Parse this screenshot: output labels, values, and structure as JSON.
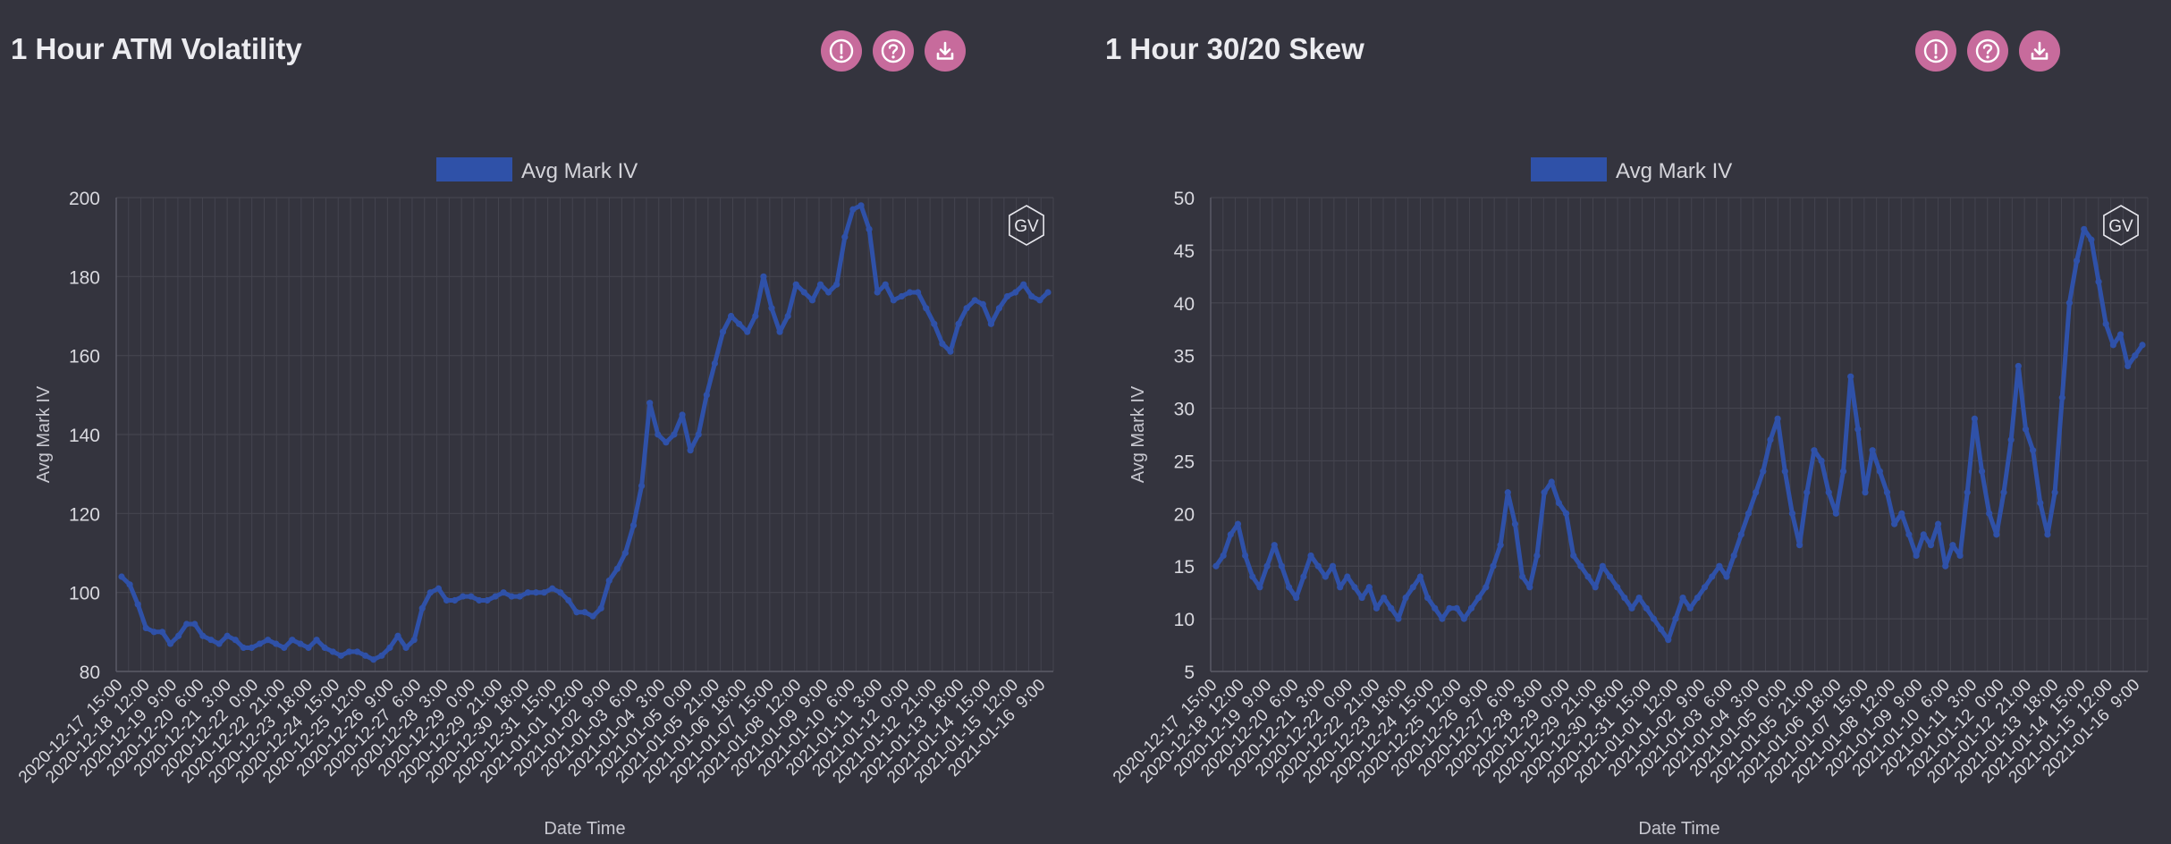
{
  "panels": [
    {
      "title": "1 Hour ATM Volatility",
      "buttons": [
        {
          "name": "info-icon"
        },
        {
          "name": "help-icon"
        },
        {
          "name": "download-icon"
        }
      ]
    },
    {
      "title": "1 Hour 30/20 Skew",
      "buttons": [
        {
          "name": "info-icon"
        },
        {
          "name": "help-icon"
        },
        {
          "name": "download-icon"
        }
      ]
    }
  ],
  "watermark": "GV",
  "colors": {
    "background": "#34343e",
    "series": "#2f51a8",
    "button": "#c76b9c",
    "grid": "#44444f"
  },
  "chart_data": [
    {
      "type": "line",
      "legend": "Avg Mark IV",
      "legend_position": "top-center",
      "xlabel": "Date Time",
      "ylabel": "Avg Mark IV",
      "ylim": [
        80,
        200
      ],
      "yticks": [
        80,
        100,
        120,
        140,
        160,
        180,
        200
      ],
      "grid": true,
      "xticks": [
        "2020-12-17  15:00",
        "2020-12-18  12:00",
        "2020-12-19  9:00",
        "2020-12-20  6:00",
        "2020-12-21  3:00",
        "2020-12-22  0:00",
        "2020-12-22  21:00",
        "2020-12-23  18:00",
        "2020-12-24  15:00",
        "2020-12-25  12:00",
        "2020-12-26  9:00",
        "2020-12-27  6:00",
        "2020-12-28  3:00",
        "2020-12-29  0:00",
        "2020-12-29  21:00",
        "2020-12-30  18:00",
        "2020-12-31  15:00",
        "2021-01-01  12:00",
        "2021-01-02  9:00",
        "2021-01-03  6:00",
        "2021-01-04  3:00",
        "2021-01-05  0:00",
        "2021-01-05  21:00",
        "2021-01-06  18:00",
        "2021-01-07  15:00",
        "2021-01-08  12:00",
        "2021-01-09  9:00",
        "2021-01-10  6:00",
        "2021-01-11  3:00",
        "2021-01-12  0:00",
        "2021-01-12  21:00",
        "2021-01-13  18:00",
        "2021-01-14  15:00",
        "2021-01-15  12:00",
        "2021-01-16  9:00"
      ],
      "values": [
        104,
        102,
        97,
        91,
        90,
        90,
        87,
        89,
        92,
        92,
        89,
        88,
        87,
        89,
        88,
        86,
        86,
        87,
        88,
        87,
        86,
        88,
        87,
        86,
        88,
        86,
        85,
        84,
        85,
        85,
        84,
        83,
        84,
        86,
        89,
        86,
        88,
        96,
        100,
        101,
        98,
        98,
        99,
        99,
        98,
        98,
        99,
        100,
        99,
        99,
        100,
        100,
        100,
        101,
        100,
        98,
        95,
        95,
        94,
        96,
        103,
        106,
        110,
        117,
        127,
        148,
        140,
        138,
        140,
        145,
        136,
        140,
        150,
        158,
        166,
        170,
        168,
        166,
        170,
        180,
        172,
        166,
        170,
        178,
        176,
        174,
        178,
        176,
        178,
        190,
        197,
        198,
        192,
        176,
        178,
        174,
        175,
        176,
        176,
        172,
        168,
        163,
        161,
        168,
        172,
        174,
        173,
        168,
        172,
        175,
        176,
        178,
        175,
        174,
        176
      ]
    },
    {
      "type": "line",
      "legend": "Avg Mark IV",
      "legend_position": "top-center",
      "xlabel": "Date Time",
      "ylabel": "Avg Mark IV",
      "ylim": [
        5,
        50
      ],
      "yticks": [
        5,
        10,
        15,
        20,
        25,
        30,
        35,
        40,
        45,
        50
      ],
      "grid": true,
      "xticks": [
        "2020-12-17  15:00",
        "2020-12-18  12:00",
        "2020-12-19  9:00",
        "2020-12-20  6:00",
        "2020-12-21  3:00",
        "2020-12-22  0:00",
        "2020-12-22  21:00",
        "2020-12-23  18:00",
        "2020-12-24  15:00",
        "2020-12-25  12:00",
        "2020-12-26  9:00",
        "2020-12-27  6:00",
        "2020-12-28  3:00",
        "2020-12-29  0:00",
        "2020-12-29  21:00",
        "2020-12-30  18:00",
        "2020-12-31  15:00",
        "2021-01-01  12:00",
        "2021-01-02  9:00",
        "2021-01-03  6:00",
        "2021-01-04  3:00",
        "2021-01-05  0:00",
        "2021-01-05  21:00",
        "2021-01-06  18:00",
        "2021-01-07  15:00",
        "2021-01-08  12:00",
        "2021-01-09  9:00",
        "2021-01-10  6:00",
        "2021-01-11  3:00",
        "2021-01-12  0:00",
        "2021-01-12  21:00",
        "2021-01-13  18:00",
        "2021-01-14  15:00",
        "2021-01-15  12:00",
        "2021-01-16  9:00"
      ],
      "values": [
        15,
        16,
        18,
        19,
        16,
        14,
        13,
        15,
        17,
        15,
        13,
        12,
        14,
        16,
        15,
        14,
        15,
        13,
        14,
        13,
        12,
        13,
        11,
        12,
        11,
        10,
        12,
        13,
        14,
        12,
        11,
        10,
        11,
        11,
        10,
        11,
        12,
        13,
        15,
        17,
        22,
        19,
        14,
        13,
        16,
        22,
        23,
        21,
        20,
        16,
        15,
        14,
        13,
        15,
        14,
        13,
        12,
        11,
        12,
        11,
        10,
        9,
        8,
        10,
        12,
        11,
        12,
        13,
        14,
        15,
        14,
        16,
        18,
        20,
        22,
        24,
        27,
        29,
        24,
        20,
        17,
        22,
        26,
        25,
        22,
        20,
        24,
        33,
        28,
        22,
        26,
        24,
        22,
        19,
        20,
        18,
        16,
        18,
        17,
        19,
        15,
        17,
        16,
        22,
        29,
        24,
        20,
        18,
        22,
        27,
        34,
        28,
        26,
        21,
        18,
        22,
        31,
        40,
        44,
        47,
        46,
        42,
        38,
        36,
        37,
        34,
        35,
        36
      ]
    }
  ]
}
